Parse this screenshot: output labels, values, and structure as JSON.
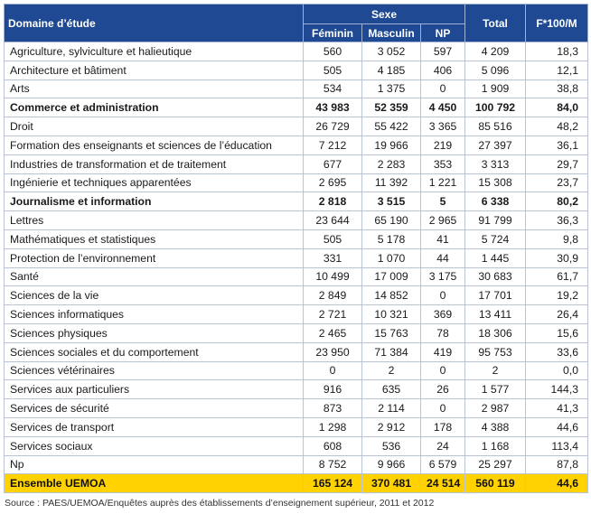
{
  "table": {
    "header": {
      "field": "Domaine d’étude",
      "sexe": "Sexe",
      "feminin": "Féminin",
      "masculin": "Masculin",
      "np": "NP",
      "total": "Total",
      "ratio": "F*100/M"
    },
    "rows": [
      {
        "label": "Agriculture, sylviculture et halieutique",
        "f": "560",
        "m": "3 052",
        "np": "597",
        "total": "4 209",
        "ratio": "18,3",
        "bold": false
      },
      {
        "label": "Architecture et bâtiment",
        "f": "505",
        "m": "4 185",
        "np": "406",
        "total": "5 096",
        "ratio": "12,1",
        "bold": false
      },
      {
        "label": "Arts",
        "f": "534",
        "m": "1 375",
        "np": "0",
        "total": "1 909",
        "ratio": "38,8",
        "bold": false
      },
      {
        "label": "Commerce et administration",
        "f": "43 983",
        "m": "52 359",
        "np": "4 450",
        "total": "100 792",
        "ratio": "84,0",
        "bold": true
      },
      {
        "label": "Droit",
        "f": "26 729",
        "m": "55 422",
        "np": "3 365",
        "total": "85 516",
        "ratio": "48,2",
        "bold": false
      },
      {
        "label": "Formation des enseignants et sciences de l’éducation",
        "f": "7 212",
        "m": "19 966",
        "np": "219",
        "total": "27 397",
        "ratio": "36,1",
        "bold": false
      },
      {
        "label": "Industries de transformation et de traitement",
        "f": "677",
        "m": "2 283",
        "np": "353",
        "total": "3 313",
        "ratio": "29,7",
        "bold": false
      },
      {
        "label": "Ingénierie et techniques apparentées",
        "f": "2 695",
        "m": "11 392",
        "np": "1 221",
        "total": "15 308",
        "ratio": "23,7",
        "bold": false
      },
      {
        "label": "Journalisme et information",
        "f": "2 818",
        "m": "3 515",
        "np": "5",
        "total": "6 338",
        "ratio": "80,2",
        "bold": true
      },
      {
        "label": "Lettres",
        "f": "23 644",
        "m": "65 190",
        "np": "2 965",
        "total": "91 799",
        "ratio": "36,3",
        "bold": false
      },
      {
        "label": "Mathématiques et statistiques",
        "f": "505",
        "m": "5 178",
        "np": "41",
        "total": "5 724",
        "ratio": "9,8",
        "bold": false
      },
      {
        "label": "Protection de l’environnement",
        "f": "331",
        "m": "1 070",
        "np": "44",
        "total": "1 445",
        "ratio": "30,9",
        "bold": false
      },
      {
        "label": "Santé",
        "f": "10 499",
        "m": "17 009",
        "np": "3 175",
        "total": "30 683",
        "ratio": "61,7",
        "bold": false
      },
      {
        "label": "Sciences de la vie",
        "f": "2 849",
        "m": "14 852",
        "np": "0",
        "total": "17 701",
        "ratio": "19,2",
        "bold": false
      },
      {
        "label": "Sciences informatiques",
        "f": "2 721",
        "m": "10 321",
        "np": "369",
        "total": "13 411",
        "ratio": "26,4",
        "bold": false
      },
      {
        "label": "Sciences physiques",
        "f": "2 465",
        "m": "15 763",
        "np": "78",
        "total": "18 306",
        "ratio": "15,6",
        "bold": false
      },
      {
        "label": "Sciences sociales et du comportement",
        "f": "23 950",
        "m": "71 384",
        "np": "419",
        "total": "95 753",
        "ratio": "33,6",
        "bold": false
      },
      {
        "label": "Sciences vétérinaires",
        "f": "0",
        "m": "2",
        "np": "0",
        "total": "2",
        "ratio": "0,0",
        "bold": false
      },
      {
        "label": "Services aux particuliers",
        "f": "916",
        "m": "635",
        "np": "26",
        "total": "1 577",
        "ratio": "144,3",
        "bold": false
      },
      {
        "label": "Services de sécurité",
        "f": "873",
        "m": "2 114",
        "np": "0",
        "total": "2 987",
        "ratio": "41,3",
        "bold": false
      },
      {
        "label": "Services de transport",
        "f": "1 298",
        "m": "2 912",
        "np": "178",
        "total": "4 388",
        "ratio": "44,6",
        "bold": false
      },
      {
        "label": "Services sociaux",
        "f": "608",
        "m": "536",
        "np": "24",
        "total": "1 168",
        "ratio": "113,4",
        "bold": false
      },
      {
        "label": "Np",
        "f": "8 752",
        "m": "9 966",
        "np": "6 579",
        "total": "25 297",
        "ratio": "87,8",
        "bold": false
      }
    ],
    "total_row": {
      "label": "Ensemble UEMOA",
      "f": "165 124",
      "m": "370 481",
      "np": "24 514",
      "total": "560 119",
      "ratio": "44,6"
    }
  },
  "colors": {
    "header_bg": "#1f4a93",
    "total_bg": "#ffd200"
  },
  "source": "Source : PAES/UEMOA/Enquêtes auprès des établissements d’enseignement supérieur, 2011 et 2012"
}
